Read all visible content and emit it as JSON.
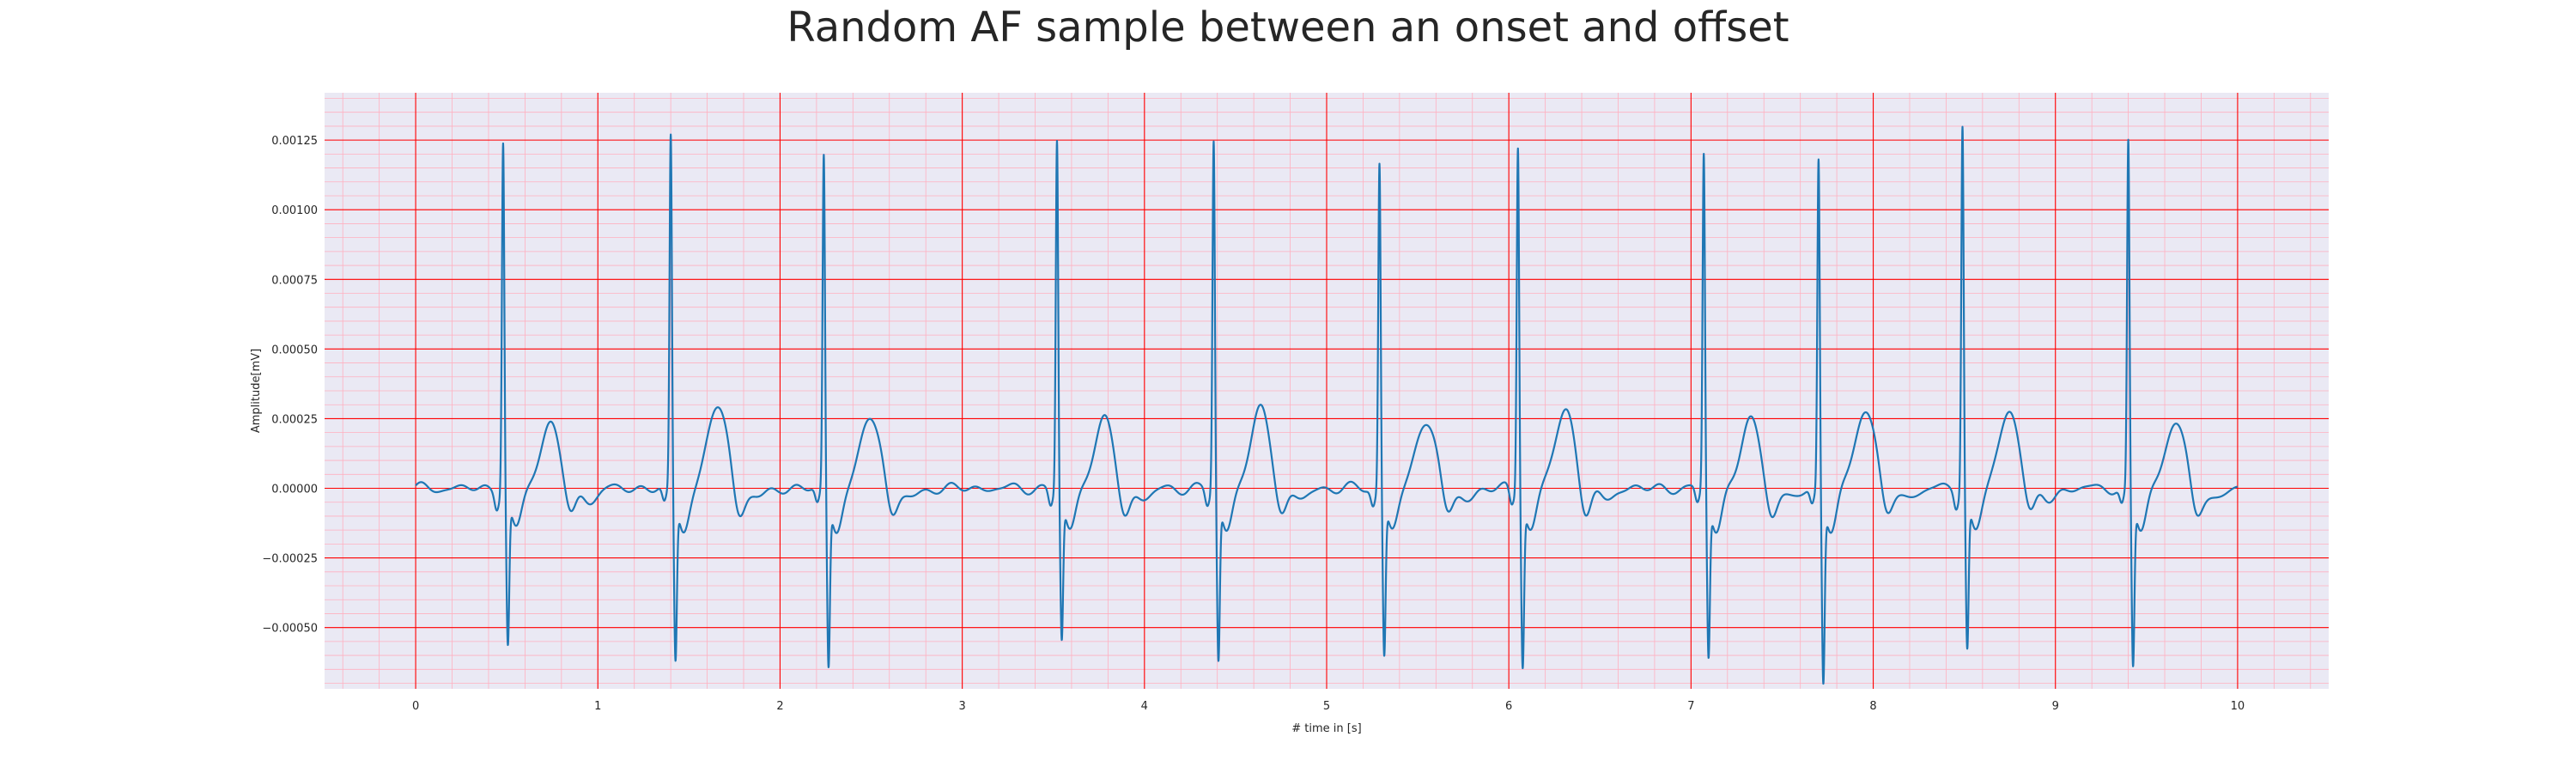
{
  "chart_data": {
    "type": "line",
    "title": "Random AF sample between an onset and offset",
    "xlabel": "# time in [s]",
    "ylabel": "Amplitude[mV]",
    "xlim": [
      -0.5,
      10.5
    ],
    "ylim": [
      -0.00072,
      0.00142
    ],
    "x_ticks": [
      0,
      1,
      2,
      3,
      4,
      5,
      6,
      7,
      8,
      9,
      10
    ],
    "x_tick_labels": [
      "0",
      "1",
      "2",
      "3",
      "4",
      "5",
      "6",
      "7",
      "8",
      "9",
      "10"
    ],
    "y_ticks": [
      -0.0005,
      -0.00025,
      0,
      0.00025,
      0.0005,
      0.00075,
      0.001,
      0.00125
    ],
    "y_tick_labels": [
      "−0.00050",
      "−0.00025",
      "0.00000",
      "0.00025",
      "0.00050",
      "0.00075",
      "0.00100",
      "0.00125"
    ],
    "grid": true,
    "colors": {
      "line": "#1f77b4",
      "plot_background": "#eae9f4",
      "major_grid": "#ff0000",
      "minor_grid": "#ffb0c0",
      "text": "#262626"
    },
    "series": [
      {
        "values_description": "ECG trace",
        "beats": [
          {
            "x": 0.48,
            "r": 0.00126,
            "s": -0.00052,
            "t": 0.00015
          },
          {
            "x": 1.4,
            "r": 0.00127,
            "s": -0.00057,
            "t": 0.00022
          },
          {
            "x": 2.24,
            "r": 0.0012,
            "s": -0.00059,
            "t": 0.00018
          },
          {
            "x": 3.52,
            "r": 0.00126,
            "s": -0.0005,
            "t": 0.00016
          },
          {
            "x": 4.38,
            "r": 0.00126,
            "s": -0.00057,
            "t": 0.0002
          },
          {
            "x": 5.29,
            "r": 0.00118,
            "s": -0.00055,
            "t": 0.00017
          },
          {
            "x": 6.05,
            "r": 0.00125,
            "s": -0.00058,
            "t": 0.0002
          },
          {
            "x": 7.07,
            "r": 0.00121,
            "s": -0.00055,
            "t": 0.00016
          },
          {
            "x": 7.7,
            "r": 0.00119,
            "s": -0.00064,
            "t": 0.00021
          },
          {
            "x": 8.49,
            "r": 0.00132,
            "s": -0.00053,
            "t": 0.0002
          },
          {
            "x": 9.4,
            "r": 0.00125,
            "s": -0.00059,
            "t": 0.00016
          }
        ],
        "x_start": 0,
        "x_end": 10
      }
    ]
  }
}
